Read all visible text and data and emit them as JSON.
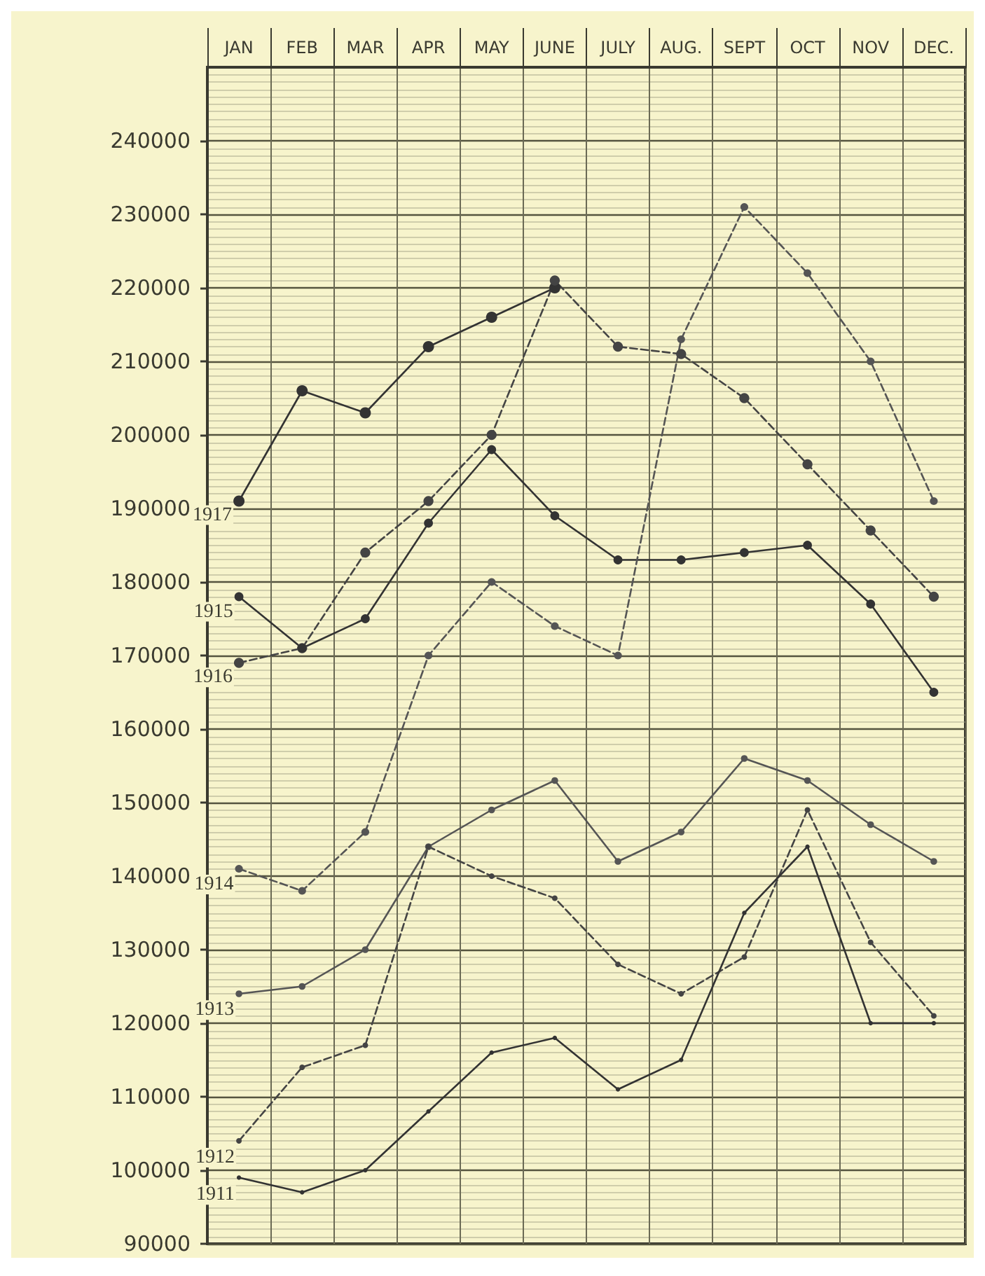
{
  "chart_data": {
    "type": "line",
    "categories": [
      "JAN",
      "FEB",
      "MAR",
      "APR",
      "MAY",
      "JUNE",
      "JULY",
      "AUG.",
      "SEPT",
      "OCT",
      "NOV",
      "DEC."
    ],
    "series": [
      {
        "name": "1917",
        "color": "#333333",
        "line_style": "solid",
        "values": [
          191000,
          206000,
          203000,
          212000,
          216000,
          220000,
          null,
          null,
          null,
          null,
          null,
          null
        ]
      },
      {
        "name": "1916",
        "color": "#444444",
        "line_style": "dashed",
        "values": [
          169000,
          171000,
          184000,
          191000,
          200000,
          221000,
          212000,
          211000,
          205000,
          196000,
          187000,
          178000
        ]
      },
      {
        "name": "1915",
        "color": "#333333",
        "line_style": "solid",
        "values": [
          178000,
          171000,
          175000,
          188000,
          198000,
          189000,
          183000,
          183000,
          184000,
          185000,
          177000,
          165000
        ]
      },
      {
        "name": "1914",
        "color": "#555555",
        "line_style": "dashed",
        "values": [
          141000,
          138000,
          146000,
          170000,
          180000,
          174000,
          170000,
          213000,
          231000,
          222000,
          210000,
          191000
        ]
      },
      {
        "name": "1913",
        "color": "#555555",
        "line_style": "solid",
        "values": [
          124000,
          125000,
          130000,
          144000,
          149000,
          153000,
          142000,
          146000,
          156000,
          153000,
          147000,
          142000
        ]
      },
      {
        "name": "1912",
        "color": "#444444",
        "line_style": "dashed",
        "values": [
          104000,
          114000,
          117000,
          144000,
          140000,
          137000,
          128000,
          124000,
          129000,
          149000,
          131000,
          121000
        ]
      },
      {
        "name": "1911",
        "color": "#333333",
        "line_style": "solid",
        "values": [
          99000,
          97000,
          100000,
          108000,
          116000,
          118000,
          111000,
          115000,
          135000,
          144000,
          120000,
          120000
        ]
      }
    ],
    "ylim": [
      90000,
      250000
    ],
    "yticks": [
      90000,
      100000,
      110000,
      120000,
      130000,
      140000,
      150000,
      160000,
      170000,
      180000,
      190000,
      200000,
      210000,
      220000,
      230000,
      240000
    ],
    "grid": true,
    "legend": false,
    "marker": "circle"
  }
}
